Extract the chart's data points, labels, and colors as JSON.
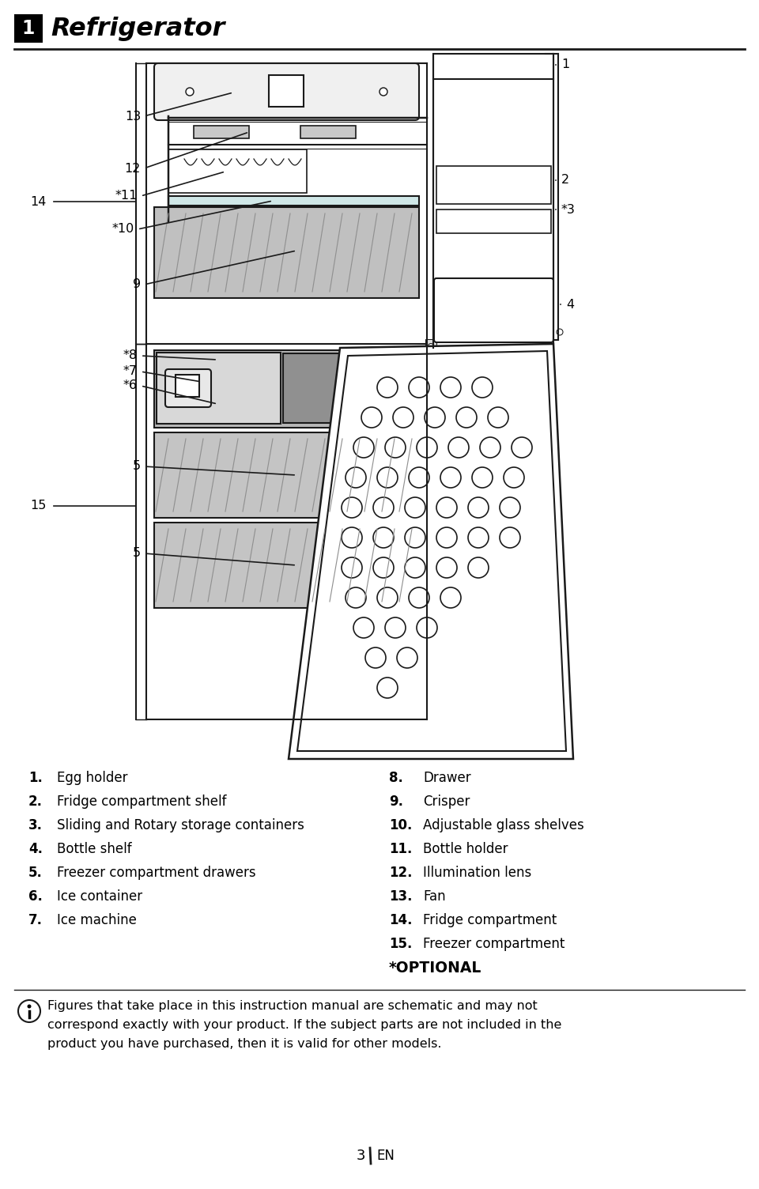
{
  "title": "Refrigerator",
  "section_number": "1",
  "bg_color": "#ffffff",
  "line_color": "#1a1a1a",
  "left_items": [
    {
      "num": "1.",
      "text": "Egg holder"
    },
    {
      "num": "2.",
      "text": "Fridge compartment shelf"
    },
    {
      "num": "3.",
      "text": "Sliding and Rotary storage containers"
    },
    {
      "num": "4.",
      "text": "Bottle shelf"
    },
    {
      "num": "5.",
      "text": "Freezer compartment drawers"
    },
    {
      "num": "6.",
      "text": "Ice container"
    },
    {
      "num": "7.",
      "text": "Ice machine"
    }
  ],
  "right_items": [
    {
      "num": "8.",
      "text": "Drawer"
    },
    {
      "num": "9.",
      "text": "Crisper"
    },
    {
      "num": "10.",
      "text": "Adjustable glass shelves"
    },
    {
      "num": "11.",
      "text": "Bottle holder"
    },
    {
      "num": "12.",
      "text": "Illumination lens"
    },
    {
      "num": "13.",
      "text": "Fan"
    },
    {
      "num": "14.",
      "text": "Fridge compartment"
    },
    {
      "num": "15.",
      "text": "Freezer compartment"
    }
  ],
  "optional_text": "*OPTIONAL",
  "note_lines": [
    "Figures that take place in this instruction manual are schematic and may not",
    "correspond exactly with your product. If the subject parts are not included in the",
    "product you have purchased, then it is valid for other models."
  ],
  "page_num": "3",
  "page_lang": "EN",
  "egg_rows": [
    [
      490,
      530,
      570,
      610
    ],
    [
      470,
      510,
      550,
      590,
      630
    ],
    [
      460,
      500,
      540,
      580,
      620,
      660
    ],
    [
      450,
      490,
      530,
      570,
      610,
      650
    ],
    [
      445,
      485,
      525,
      565,
      605,
      645
    ],
    [
      445,
      485,
      525,
      565,
      605,
      645
    ],
    [
      445,
      485,
      525,
      565,
      605
    ],
    [
      450,
      490,
      530,
      570
    ],
    [
      460,
      500,
      540
    ],
    [
      475,
      515
    ],
    [
      490
    ]
  ]
}
